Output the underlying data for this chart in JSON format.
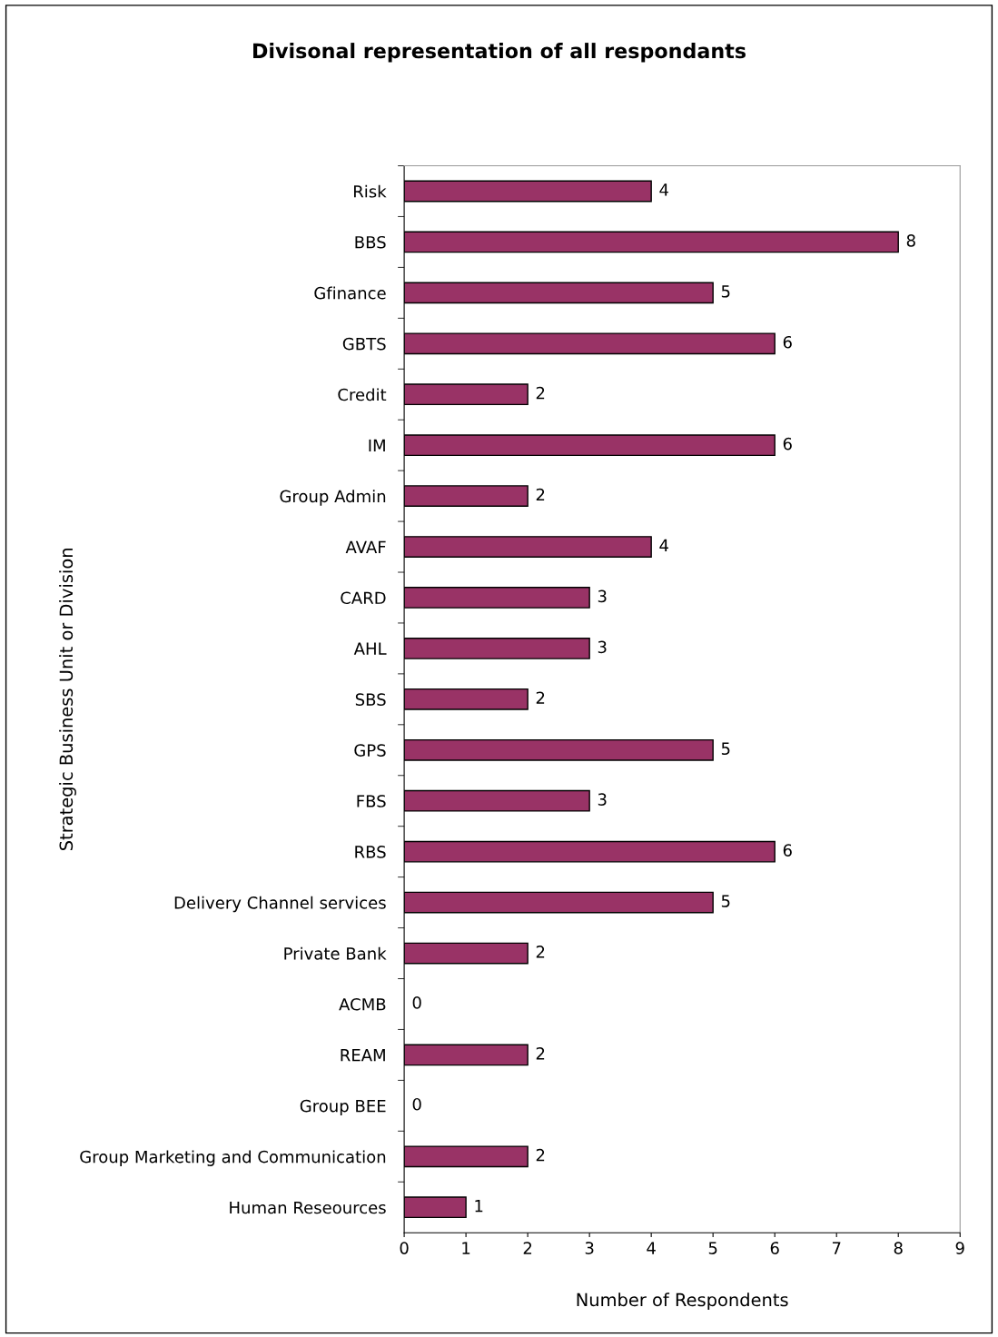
{
  "chart_data": {
    "type": "bar",
    "orientation": "horizontal",
    "title": "Divisonal representation of all respondants",
    "xlabel": "Number of Respondents",
    "ylabel": "Strategic Business Unit or Division",
    "categories": [
      "Risk",
      "BBS",
      "Gfinance",
      "GBTS",
      "Credit",
      "IM",
      "Group Admin",
      "AVAF",
      "CARD",
      "AHL",
      "SBS",
      "GPS",
      "FBS",
      "RBS",
      "Delivery Channel services",
      "Private Bank",
      "ACMB",
      "REAM",
      "Group BEE",
      "Group Marketing and Communication",
      "Human Reseources"
    ],
    "values": [
      4,
      8,
      5,
      6,
      2,
      6,
      2,
      4,
      3,
      3,
      2,
      5,
      3,
      6,
      5,
      2,
      0,
      2,
      0,
      2,
      1
    ],
    "color": "#993366",
    "xlim": [
      0,
      9
    ],
    "xticks": [
      0,
      1,
      2,
      3,
      4,
      5,
      6,
      7,
      8,
      9
    ],
    "data_labels": true,
    "grid": false,
    "legend": false
  }
}
